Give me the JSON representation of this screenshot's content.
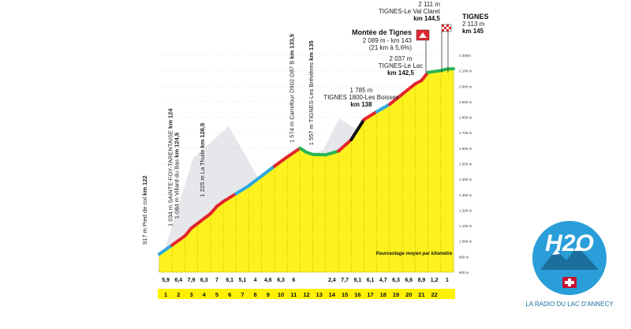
{
  "chart_data": {
    "type": "area",
    "title": "",
    "xlabel": "",
    "ylabel": "",
    "x_unit": "km",
    "y_unit": "m",
    "km_ticks": [
      "1",
      "2",
      "3",
      "4",
      "5",
      "6",
      "7",
      "8",
      "9",
      "10",
      "11",
      "12",
      "13",
      "14",
      "15",
      "16",
      "17",
      "18",
      "19",
      "20",
      "21",
      "22"
    ],
    "profile": [
      {
        "km": 122,
        "alt": 917
      },
      {
        "km": 123,
        "alt": 975
      },
      {
        "km": 124,
        "alt": 1034
      },
      {
        "km": 124.5,
        "alt": 1084
      },
      {
        "km": 125,
        "alt": 1115
      },
      {
        "km": 126,
        "alt": 1178
      },
      {
        "km": 126.5,
        "alt": 1225
      },
      {
        "km": 127,
        "alt": 1256
      },
      {
        "km": 128,
        "alt": 1307
      },
      {
        "km": 129,
        "alt": 1358
      },
      {
        "km": 130,
        "alt": 1421
      },
      {
        "km": 131,
        "alt": 1484
      },
      {
        "km": 132,
        "alt": 1544
      },
      {
        "km": 133,
        "alt": 1600
      },
      {
        "km": 133.5,
        "alt": 1574
      },
      {
        "km": 134,
        "alt": 1560
      },
      {
        "km": 135,
        "alt": 1557
      },
      {
        "km": 136,
        "alt": 1581
      },
      {
        "km": 137,
        "alt": 1655
      },
      {
        "km": 138,
        "alt": 1785
      },
      {
        "km": 139,
        "alt": 1836
      },
      {
        "km": 140,
        "alt": 1883
      },
      {
        "km": 141,
        "alt": 1949
      },
      {
        "km": 142,
        "alt": 2015
      },
      {
        "km": 142.5,
        "alt": 2037
      },
      {
        "km": 143,
        "alt": 2089
      },
      {
        "km": 144,
        "alt": 2101
      },
      {
        "km": 144.5,
        "alt": 2111
      },
      {
        "km": 145,
        "alt": 2113
      }
    ],
    "gradients": [
      "5,9",
      "6,4",
      "7,9",
      "6,3",
      "7",
      "6,1",
      "5,1",
      "4",
      "4,6",
      "6,3",
      "6",
      "",
      "",
      "2,4",
      "7,7",
      "9,1",
      "6,1",
      "4,7",
      "6,3",
      "6,6",
      "8,9",
      "1,2",
      "1"
    ],
    "y_axis_ticks": [
      "800 m",
      "900 m",
      "1 000 m",
      "1 100 m",
      "1 200 m",
      "1 300 m",
      "1 400 m",
      "1 500 m",
      "1 600 m",
      "1 700 m",
      "1 800 m",
      "1 900 m",
      "2 000 m",
      "2 100 m",
      "2 200m"
    ],
    "ylim": [
      800,
      2200
    ],
    "gradient_caption": "Pourcentage moyen par kilomètre",
    "colors": {
      "fill": "#fdf21e",
      "under_3": "#2fa6dc",
      "3_to_6": "#29b553",
      "6_to_9": "#e1262d",
      "over_9": "#111111",
      "km_band": "#fff200",
      "mountain": "#e6e7ea",
      "flag_red": "#e1262d"
    },
    "annotations": [
      {
        "alt": "917 m",
        "place": "Pied de col",
        "km": "km 122"
      },
      {
        "alt": "1 034 m",
        "place": "SAINTE-FOY-TARENTAISE",
        "km": "km 124"
      },
      {
        "alt": "1 084 m",
        "place": "Villard du Bas",
        "km": "km 124,5"
      },
      {
        "alt": "1 225 m",
        "place": "La Thuile",
        "km": "km 126,5"
      },
      {
        "alt": "1 574 m",
        "place": "Carrefour D902-D87 B",
        "km": "km 133,5"
      },
      {
        "alt": "1 557 m",
        "place": "TIGNES-Les Brévières",
        "km": "km 135"
      }
    ],
    "labels_right": {
      "lesboisses": {
        "alt": "1 785 m",
        "place": "TIGNES 1800-Les Boisses",
        "km": "km 138"
      },
      "lelac": {
        "alt": "2 037 m",
        "place": "TIGNES-Le Lac",
        "km": "km 142,5"
      },
      "montee": {
        "title": "Montée de Tignes",
        "alt_km": "2 089 m - km 143",
        "detail": "(21 km à 5,6%)"
      },
      "valclaret": {
        "alt": "2 111 m",
        "place": "TIGNES-Le Val Claret",
        "km": "km 144,5"
      },
      "finish": {
        "title": "TIGNES",
        "alt": "2 113 m",
        "km": "km 145"
      }
    }
  },
  "logo": {
    "text": "H2O",
    "tagline": "LA RADIO DU LAC D'ANNECY"
  }
}
